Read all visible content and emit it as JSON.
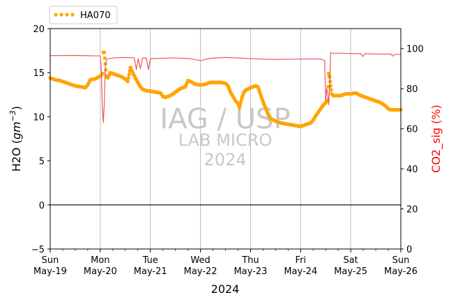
{
  "chart_data": {
    "type": "line",
    "xlabel": "2024",
    "ylabel": "H2O (gm^-3)",
    "ylabel_base": "H2O (",
    "ylabel_unit": "gm",
    "ylabel_exp": "−3",
    "ylabel_close": ")",
    "y2label": "CO2_sig (%)",
    "ylim": [
      -5,
      20
    ],
    "y2lim": [
      0,
      110
    ],
    "xlim": [
      "2024-05-19",
      "2024-05-26"
    ],
    "yticks": [
      "−5",
      "0",
      "5",
      "10",
      "15",
      "20"
    ],
    "y2ticks": [
      "0",
      "20",
      "40",
      "60",
      "80",
      "100"
    ],
    "xticks": [
      {
        "day": "Sun",
        "date": "May-19"
      },
      {
        "day": "Mon",
        "date": "May-20"
      },
      {
        "day": "Tue",
        "date": "May-21"
      },
      {
        "day": "Wed",
        "date": "May-22"
      },
      {
        "day": "Thu",
        "date": "May-23"
      },
      {
        "day": "Fri",
        "date": "May-24"
      },
      {
        "day": "Sat",
        "date": "May-25"
      },
      {
        "day": "Sun",
        "date": "May-26"
      }
    ],
    "grid": "vertical major ticks",
    "legend": {
      "placement": "top-left, above axes",
      "entries": [
        "HA070"
      ]
    },
    "watermark": [
      "IAG / USP",
      "LAB MICRO",
      "2024"
    ],
    "series": [
      {
        "name": "HA070",
        "axis": "left",
        "style": "dots",
        "color": "#ffa500",
        "points": [
          [
            0.0,
            14.4
          ],
          [
            0.1,
            14.2
          ],
          [
            0.2,
            14.1
          ],
          [
            0.3,
            13.9
          ],
          [
            0.4,
            13.7
          ],
          [
            0.5,
            13.5
          ],
          [
            0.6,
            13.4
          ],
          [
            0.7,
            13.3
          ],
          [
            0.75,
            13.6
          ],
          [
            0.8,
            14.2
          ],
          [
            0.9,
            14.3
          ],
          [
            1.0,
            14.6
          ],
          [
            1.05,
            14.9
          ],
          [
            1.06,
            17.3
          ],
          [
            1.08,
            17.3
          ],
          [
            1.1,
            16.0
          ],
          [
            1.12,
            14.6
          ],
          [
            1.15,
            14.4
          ],
          [
            1.2,
            15.0
          ],
          [
            1.3,
            14.8
          ],
          [
            1.4,
            14.6
          ],
          [
            1.5,
            14.3
          ],
          [
            1.55,
            14.0
          ],
          [
            1.6,
            15.6
          ],
          [
            1.65,
            15.0
          ],
          [
            1.7,
            14.4
          ],
          [
            1.75,
            13.9
          ],
          [
            1.8,
            13.4
          ],
          [
            1.85,
            13.1
          ],
          [
            1.9,
            13.0
          ],
          [
            2.0,
            12.9
          ],
          [
            2.1,
            12.8
          ],
          [
            2.2,
            12.7
          ],
          [
            2.25,
            12.3
          ],
          [
            2.3,
            12.2
          ],
          [
            2.4,
            12.4
          ],
          [
            2.5,
            12.8
          ],
          [
            2.6,
            13.2
          ],
          [
            2.7,
            13.4
          ],
          [
            2.75,
            14.1
          ],
          [
            2.8,
            14.0
          ],
          [
            2.9,
            13.7
          ],
          [
            3.0,
            13.6
          ],
          [
            3.1,
            13.7
          ],
          [
            3.2,
            13.9
          ],
          [
            3.3,
            13.9
          ],
          [
            3.4,
            13.9
          ],
          [
            3.5,
            13.8
          ],
          [
            3.55,
            13.5
          ],
          [
            3.6,
            12.8
          ],
          [
            3.65,
            12.3
          ],
          [
            3.7,
            11.8
          ],
          [
            3.75,
            11.5
          ],
          [
            3.78,
            11.0
          ],
          [
            3.82,
            12.0
          ],
          [
            3.86,
            12.7
          ],
          [
            3.9,
            13.0
          ],
          [
            4.0,
            13.3
          ],
          [
            4.1,
            13.5
          ],
          [
            4.15,
            13.4
          ],
          [
            4.2,
            12.5
          ],
          [
            4.25,
            11.7
          ],
          [
            4.3,
            11.0
          ],
          [
            4.35,
            10.3
          ],
          [
            4.4,
            9.8
          ],
          [
            4.5,
            9.5
          ],
          [
            4.6,
            9.3
          ],
          [
            4.7,
            9.2
          ],
          [
            4.8,
            9.1
          ],
          [
            4.9,
            9.0
          ],
          [
            5.0,
            8.9
          ],
          [
            5.1,
            9.1
          ],
          [
            5.2,
            9.3
          ],
          [
            5.25,
            9.6
          ],
          [
            5.3,
            10.1
          ],
          [
            5.35,
            10.5
          ],
          [
            5.4,
            10.9
          ],
          [
            5.45,
            11.3
          ],
          [
            5.5,
            11.6
          ],
          [
            5.54,
            11.9
          ],
          [
            5.56,
            14.9
          ],
          [
            5.58,
            14.5
          ],
          [
            5.6,
            13.5
          ],
          [
            5.62,
            12.6
          ],
          [
            5.65,
            12.4
          ],
          [
            5.7,
            12.4
          ],
          [
            5.8,
            12.4
          ],
          [
            5.9,
            12.6
          ],
          [
            6.0,
            12.6
          ],
          [
            6.1,
            12.7
          ],
          [
            6.2,
            12.4
          ],
          [
            6.3,
            12.2
          ],
          [
            6.4,
            12.0
          ],
          [
            6.5,
            11.8
          ],
          [
            6.6,
            11.6
          ],
          [
            6.7,
            11.2
          ],
          [
            6.75,
            10.9
          ],
          [
            6.8,
            10.8
          ],
          [
            6.9,
            10.8
          ],
          [
            7.0,
            10.8
          ]
        ]
      },
      {
        "name": "CO2_sig",
        "axis": "right",
        "style": "line",
        "color": "#e8595a",
        "points": [
          [
            0.0,
            96.5
          ],
          [
            0.5,
            96.6
          ],
          [
            0.9,
            96.4
          ],
          [
            1.0,
            96.4
          ],
          [
            1.02,
            90.0
          ],
          [
            1.04,
            72.0
          ],
          [
            1.06,
            63.0
          ],
          [
            1.08,
            72.0
          ],
          [
            1.1,
            90.0
          ],
          [
            1.12,
            94.0
          ],
          [
            1.15,
            95.0
          ],
          [
            1.3,
            95.4
          ],
          [
            1.5,
            95.6
          ],
          [
            1.68,
            95.4
          ],
          [
            1.72,
            89.5
          ],
          [
            1.76,
            95.0
          ],
          [
            1.8,
            90.0
          ],
          [
            1.84,
            95.3
          ],
          [
            1.92,
            95.3
          ],
          [
            1.96,
            89.5
          ],
          [
            2.0,
            95.0
          ],
          [
            2.5,
            95.4
          ],
          [
            2.8,
            95.0
          ],
          [
            3.0,
            94.0
          ],
          [
            3.2,
            95.2
          ],
          [
            3.5,
            95.6
          ],
          [
            3.8,
            95.3
          ],
          [
            4.0,
            95.0
          ],
          [
            4.5,
            94.6
          ],
          [
            5.0,
            94.8
          ],
          [
            5.4,
            94.8
          ],
          [
            5.48,
            94.0
          ],
          [
            5.5,
            74.0
          ],
          [
            5.52,
            80.0
          ],
          [
            5.54,
            78.0
          ],
          [
            5.56,
            72.0
          ],
          [
            5.58,
            82.0
          ],
          [
            5.6,
            98.0
          ],
          [
            5.62,
            97.7
          ],
          [
            5.8,
            97.7
          ],
          [
            6.1,
            97.5
          ],
          [
            6.2,
            97.5
          ],
          [
            6.24,
            96.0
          ],
          [
            6.28,
            97.5
          ],
          [
            6.5,
            97.3
          ],
          [
            6.8,
            97.3
          ],
          [
            6.84,
            96.3
          ],
          [
            6.88,
            97.1
          ],
          [
            7.0,
            97.1
          ]
        ]
      }
    ],
    "reference_line": {
      "axis": "left",
      "y": 0,
      "color": "#000000"
    }
  }
}
